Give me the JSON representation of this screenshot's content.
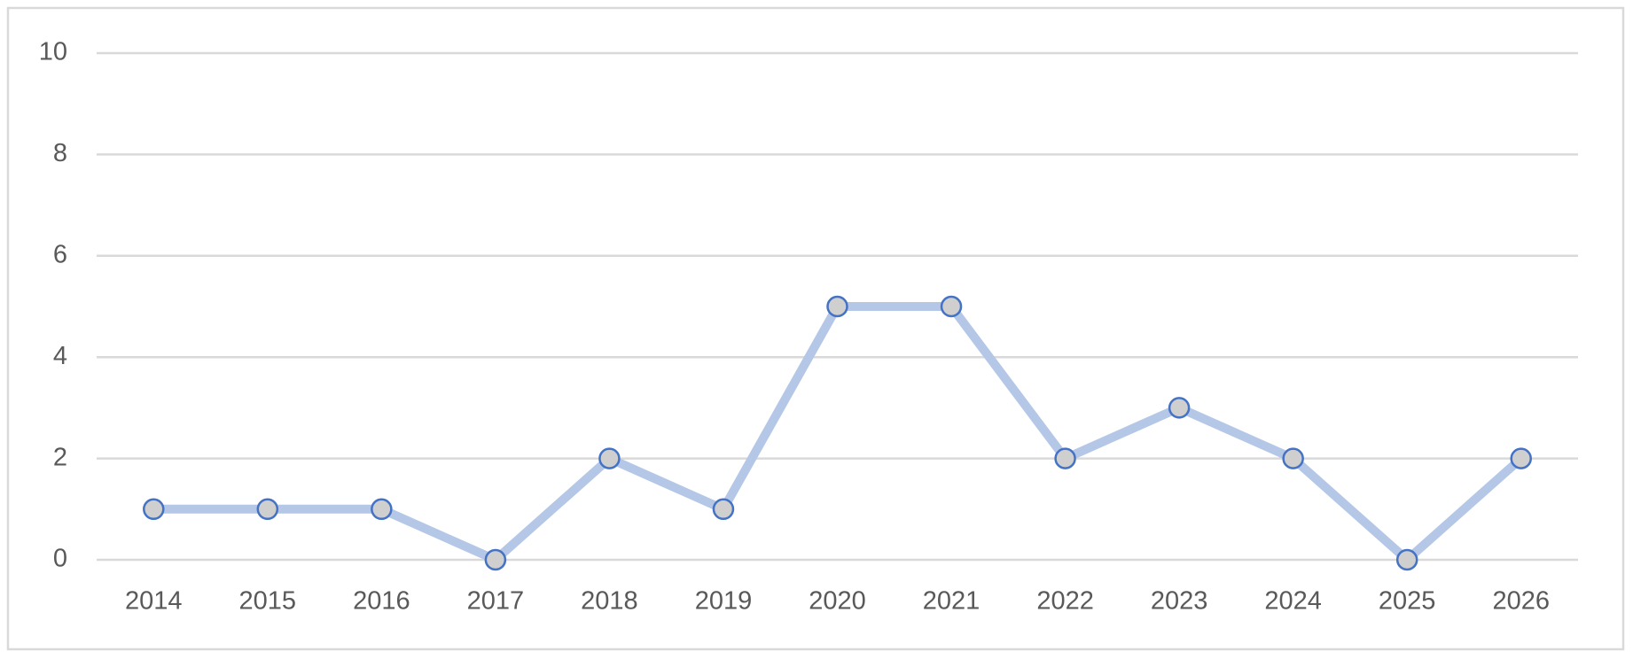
{
  "chart_data": {
    "type": "line",
    "categories": [
      "2014",
      "2015",
      "2016",
      "2017",
      "2018",
      "2019",
      "2020",
      "2021",
      "2022",
      "2023",
      "2024",
      "2025",
      "2026"
    ],
    "values": [
      1,
      1,
      1,
      0,
      2,
      1,
      5,
      5,
      2,
      3,
      2,
      0,
      2
    ],
    "color": "#b4c7e7",
    "marker_color": "#4472c4",
    "ylim": [
      0,
      10
    ],
    "yticks": [
      0,
      2,
      4,
      6,
      8,
      10
    ],
    "grid": true
  }
}
